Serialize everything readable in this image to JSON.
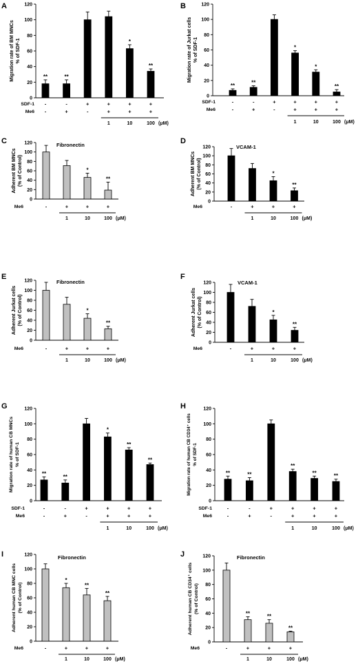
{
  "chart_data": [
    {
      "panel": "A",
      "type": "bar",
      "ylabel": [
        "Migration rate of BM MNCs",
        "% of SDF-1"
      ],
      "ylim": [
        0,
        120
      ],
      "yticks": [
        0,
        20,
        40,
        60,
        80,
        100,
        120
      ],
      "grid": false,
      "bar_color": "#000000",
      "values": [
        18,
        18,
        100,
        104,
        63,
        34
      ],
      "errors": [
        5,
        5,
        10,
        7,
        5,
        3
      ],
      "significance": [
        "**",
        "**",
        "",
        "",
        "*",
        "**"
      ],
      "conditions": [
        {
          "label": "SDF-1",
          "signs": [
            "-",
            "-",
            "+",
            "+",
            "+",
            "+"
          ]
        },
        {
          "label": "Me6",
          "signs": [
            "-",
            "+",
            "-",
            "+",
            "+",
            "+"
          ]
        }
      ],
      "concentrations": [
        "",
        "",
        "",
        "1",
        "10",
        "100"
      ],
      "unit": "(μM)"
    },
    {
      "panel": "B",
      "type": "bar",
      "ylabel": [
        "Migration rate of Jurkat cells",
        "% of SDF-1"
      ],
      "ylim": [
        0,
        120
      ],
      "yticks": [
        0,
        20,
        40,
        60,
        80,
        100,
        120
      ],
      "grid": false,
      "bar_color": "#000000",
      "values": [
        7,
        11,
        100,
        56,
        31,
        5
      ],
      "errors": [
        2,
        2,
        6,
        3,
        3,
        3
      ],
      "significance": [
        "**",
        "**",
        "",
        "*",
        "*",
        "**"
      ],
      "conditions": [
        {
          "label": "SDF-1",
          "signs": [
            "-",
            "-",
            "+",
            "+",
            "+",
            "+"
          ]
        },
        {
          "label": "Me6",
          "signs": [
            "-",
            "+",
            "-",
            "+",
            "+",
            "+"
          ]
        }
      ],
      "concentrations": [
        "",
        "",
        "",
        "1",
        "10",
        "100"
      ],
      "unit": "(μM)"
    },
    {
      "panel": "C",
      "type": "bar",
      "title": "Fibronectin",
      "ylabel": [
        "Adherent BM MNCs",
        "(% of Control)"
      ],
      "ylim": [
        0,
        120
      ],
      "yticks": [
        0,
        20,
        40,
        60,
        80,
        100,
        120
      ],
      "grid": false,
      "bar_color": "#c0c0c0",
      "values": [
        100,
        71,
        46,
        19
      ],
      "errors": [
        14,
        11,
        9,
        17
      ],
      "significance": [
        "",
        "",
        "*",
        "**"
      ],
      "conditions": [
        {
          "label": "Me6",
          "signs": [
            "-",
            "+",
            "+",
            "+"
          ]
        }
      ],
      "concentrations": [
        "",
        "1",
        "10",
        "100"
      ],
      "unit": "(μM)"
    },
    {
      "panel": "D",
      "type": "bar",
      "title": "VCAM-1",
      "ylabel": [
        "Adherent BM MNCs",
        "(% of Control)"
      ],
      "ylim": [
        0,
        120
      ],
      "yticks": [
        0,
        20,
        40,
        60,
        80,
        100,
        120
      ],
      "grid": false,
      "bar_color": "#000000",
      "values": [
        100,
        72,
        45,
        23
      ],
      "errors": [
        16,
        11,
        9,
        6
      ],
      "significance": [
        "",
        "",
        "*",
        "**"
      ],
      "conditions": [
        {
          "label": "Me6",
          "signs": [
            "-",
            "+",
            "+",
            "+"
          ]
        }
      ],
      "concentrations": [
        "",
        "1",
        "10",
        "100"
      ],
      "unit": "(μM)"
    },
    {
      "panel": "E",
      "type": "bar",
      "title": "Fibronectin",
      "ylabel": [
        "Adherent Jurkat cells",
        "(% of Control)"
      ],
      "ylim": [
        0,
        120
      ],
      "yticks": [
        0,
        20,
        40,
        60,
        80,
        100,
        120
      ],
      "grid": false,
      "bar_color": "#c0c0c0",
      "values": [
        100,
        72,
        44,
        23
      ],
      "errors": [
        16,
        14,
        9,
        5
      ],
      "significance": [
        "",
        "",
        "*",
        "**"
      ],
      "conditions": [
        {
          "label": "Me6",
          "signs": [
            "-",
            "+",
            "+",
            "+"
          ]
        }
      ],
      "concentrations": [
        "",
        "1",
        "10",
        "100"
      ],
      "unit": "(μM)"
    },
    {
      "panel": "F",
      "type": "bar",
      "title": "VCAM-1",
      "ylabel": [
        "Adherent Jurkat cells",
        "(% of Control)"
      ],
      "ylim": [
        0,
        120
      ],
      "yticks": [
        0,
        20,
        40,
        60,
        80,
        100,
        120
      ],
      "grid": false,
      "bar_color": "#000000",
      "values": [
        100,
        72,
        45,
        24
      ],
      "errors": [
        16,
        14,
        9,
        6
      ],
      "significance": [
        "",
        "",
        "*",
        "**"
      ],
      "conditions": [
        {
          "label": "Me6",
          "signs": [
            "-",
            "+",
            "+",
            "+"
          ]
        }
      ],
      "concentrations": [
        "",
        "1",
        "10",
        "100"
      ],
      "unit": "(μM)"
    },
    {
      "panel": "G",
      "type": "bar",
      "ylabel": [
        "Migration rate of human CB MNCs",
        "% of SDF-1"
      ],
      "ylim": [
        0,
        120
      ],
      "yticks": [
        0,
        20,
        40,
        60,
        80,
        100,
        120
      ],
      "grid": false,
      "bar_color": "#000000",
      "values": [
        27,
        23,
        100,
        83,
        66,
        47
      ],
      "errors": [
        4,
        4,
        7,
        5,
        3,
        2
      ],
      "significance": [
        "**",
        "**",
        "",
        "*",
        "**",
        "**"
      ],
      "conditions": [
        {
          "label": "SDF-1",
          "signs": [
            "-",
            "-",
            "+",
            "+",
            "+",
            "+"
          ]
        },
        {
          "label": "Me6",
          "signs": [
            "-",
            "+",
            "-",
            "+",
            "+",
            "+"
          ]
        }
      ],
      "concentrations": [
        "",
        "",
        "",
        "1",
        "10",
        "100"
      ],
      "unit": "(μM)"
    },
    {
      "panel": "H",
      "type": "bar",
      "ylabel": [
        "Migration rate of human CB CD34⁺ cells",
        "% of SDF-1"
      ],
      "ylim": [
        0,
        120
      ],
      "yticks": [
        0,
        20,
        40,
        60,
        80,
        100,
        120
      ],
      "grid": false,
      "bar_color": "#000000",
      "values": [
        28,
        26,
        100,
        38,
        29,
        25
      ],
      "errors": [
        4,
        4,
        5,
        3,
        3,
        3
      ],
      "significance": [
        "**",
        "**",
        "",
        "**",
        "**",
        "**"
      ],
      "conditions": [
        {
          "label": "SDF-1",
          "signs": [
            "-",
            "-",
            "+",
            "+",
            "+",
            "+"
          ]
        },
        {
          "label": "Me6",
          "signs": [
            "-",
            "+",
            "-",
            "+",
            "+",
            "+"
          ]
        }
      ],
      "concentrations": [
        "",
        "",
        "",
        "1",
        "10",
        "100"
      ],
      "unit": "(μM)"
    },
    {
      "panel": "I",
      "type": "bar",
      "title": "Fibronectin",
      "ylabel": [
        "Adherent human CB MNC cells",
        "(% of Control)"
      ],
      "ylim": [
        0,
        120
      ],
      "yticks": [
        0,
        20,
        40,
        60,
        80,
        100,
        120
      ],
      "grid": false,
      "bar_color": "#c0c0c0",
      "values": [
        100,
        74,
        64,
        56
      ],
      "errors": [
        7,
        6,
        9,
        6
      ],
      "significance": [
        "",
        "*",
        "**",
        "**"
      ],
      "conditions": [
        {
          "label": "Me6",
          "signs": [
            "-",
            "+",
            "+",
            "+"
          ]
        }
      ],
      "concentrations": [
        "",
        "1",
        "10",
        "100"
      ],
      "unit": "(μM)"
    },
    {
      "panel": "J",
      "type": "bar",
      "title": "Fibronectin",
      "ylabel": [
        "Adherent human CB CD34⁺ cells",
        "(% of Control)"
      ],
      "ylim": [
        0,
        120
      ],
      "yticks": [
        0,
        20,
        40,
        60,
        80,
        100,
        120
      ],
      "grid": false,
      "bar_color": "#c0c0c0",
      "values": [
        100,
        31,
        26,
        14
      ],
      "errors": [
        10,
        4,
        5,
        1
      ],
      "significance": [
        "",
        "**",
        "**",
        "**"
      ],
      "conditions": [
        {
          "label": "Me6",
          "signs": [
            "-",
            "+",
            "+",
            "+"
          ]
        }
      ],
      "concentrations": [
        "",
        "1",
        "10",
        "100"
      ],
      "unit": "(μM)"
    }
  ]
}
